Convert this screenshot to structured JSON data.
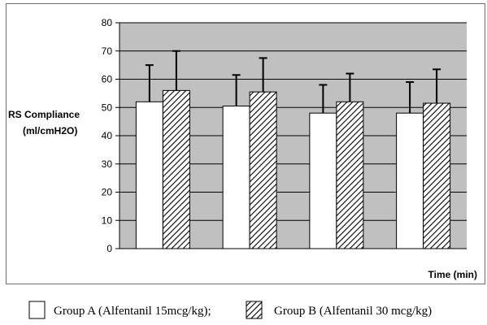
{
  "chart_data": {
    "type": "bar",
    "categories": [
      "",
      "",
      "",
      ""
    ],
    "series": [
      {
        "name": "Group A (Alfentanil 15mcg/kg);",
        "values": [
          52,
          50.5,
          48,
          48
        ],
        "errors": [
          13,
          11,
          10,
          11
        ],
        "pattern": "plain"
      },
      {
        "name": "Group B (Alfentanil 30 mcg/kg)",
        "values": [
          56,
          55.5,
          52,
          51.5
        ],
        "errors": [
          14,
          12,
          10,
          12
        ],
        "pattern": "hatched"
      }
    ],
    "ylabel": [
      "RS Compliance",
      "(ml/cmH2O)"
    ],
    "xlabel": "Time (min)",
    "ylim": [
      0,
      80
    ],
    "yticks": [
      0,
      10,
      20,
      30,
      40,
      50,
      60,
      70,
      80
    ],
    "grid": true,
    "plot_background": "#c0c0c0",
    "legend_placement": "bottom"
  }
}
